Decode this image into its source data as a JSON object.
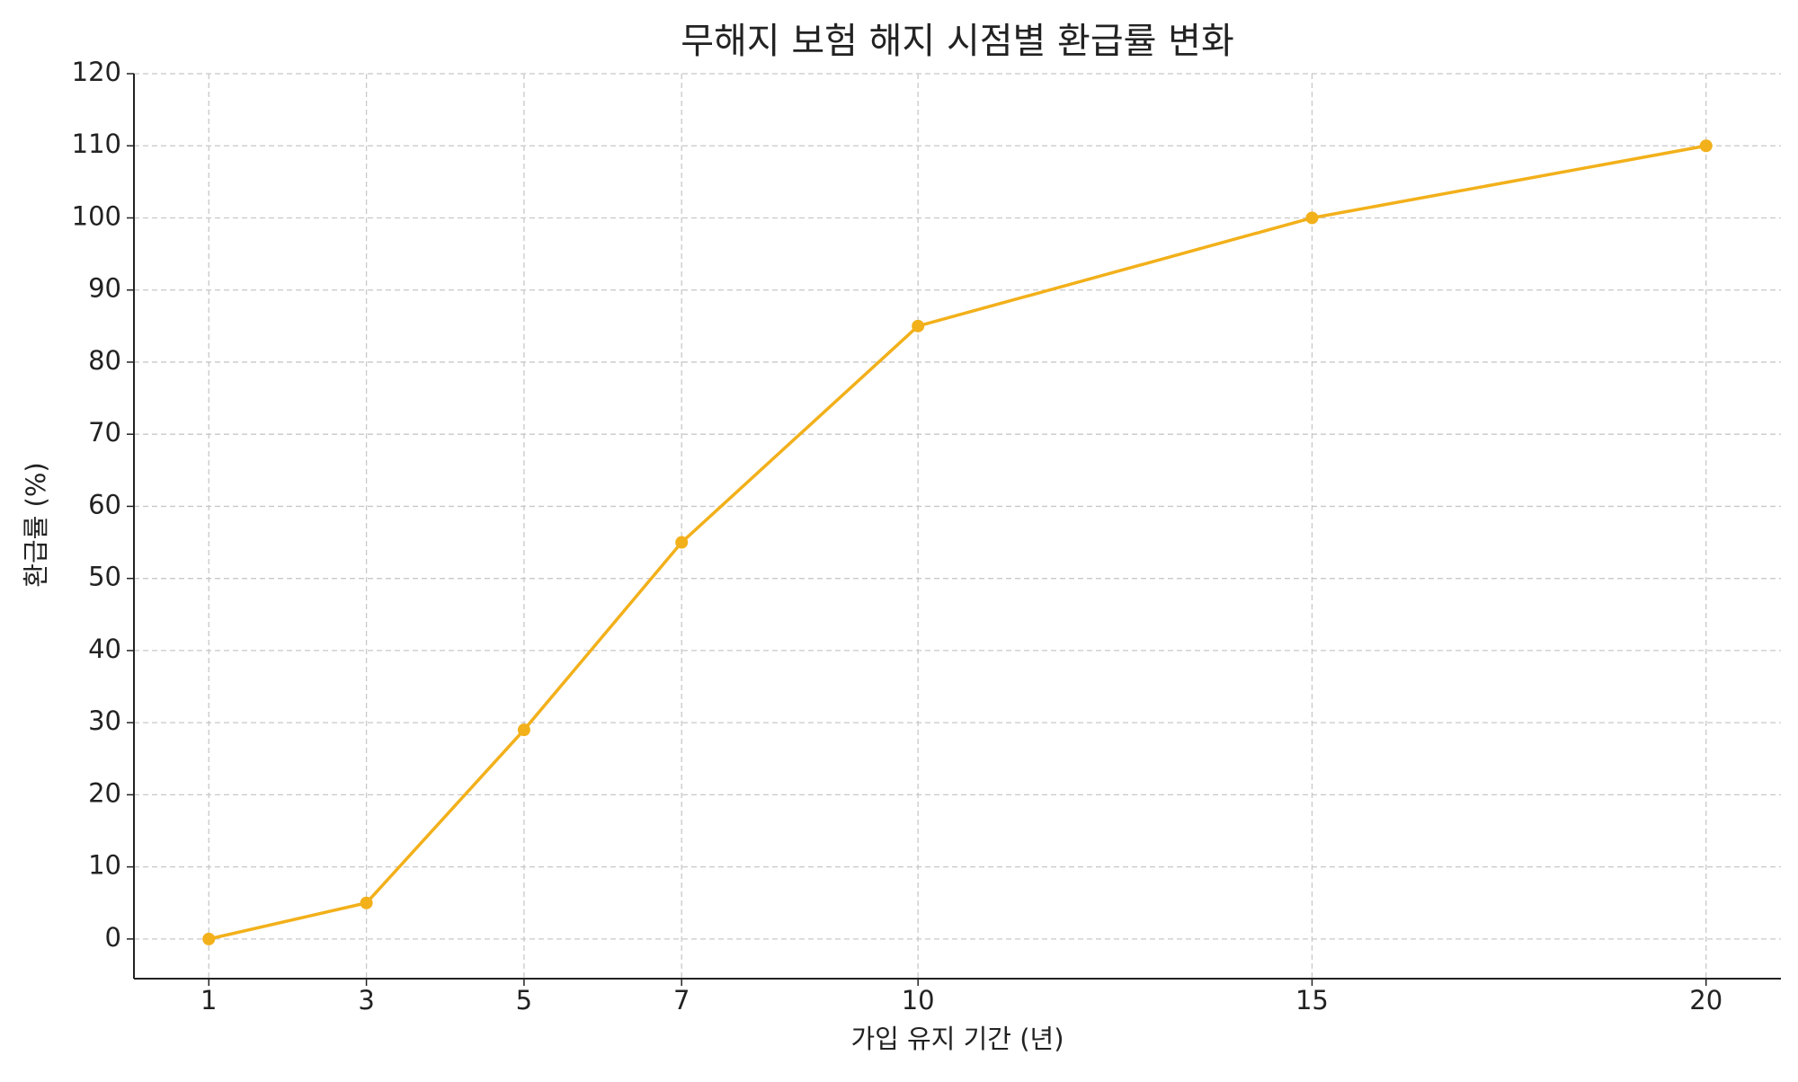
{
  "chart_data": {
    "type": "line",
    "title": "무해지 보험 해지 시점별 환급률 변화",
    "x_label": "가입 유지 기간 (년)",
    "y_label": "환급률 (%)",
    "x": [
      1,
      3,
      5,
      7,
      10,
      15,
      20
    ],
    "series": [
      {
        "name": "환급률",
        "color": "#f2b01a",
        "values": [
          0,
          5,
          29,
          55,
          85,
          100,
          110
        ]
      }
    ],
    "xlim": [
      0.05,
      20.95
    ],
    "xticks": [
      1,
      3,
      5,
      7,
      10,
      15,
      20
    ],
    "ylim": [
      -5.5,
      120
    ],
    "yticks": [
      0,
      10,
      20,
      30,
      40,
      50,
      60,
      70,
      80,
      90,
      100,
      110,
      120
    ],
    "grid": true,
    "legend": false
  }
}
